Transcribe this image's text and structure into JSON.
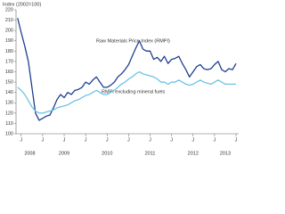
{
  "chart_data": {
    "type": "line",
    "y_axis_label": "Index (2002=100)",
    "annotations": [
      "Raw Materials Price Index (RMPI)",
      "RMPI excluding mineral fuels"
    ],
    "x": [
      2008.417,
      2008.5,
      2008.583,
      2008.667,
      2008.75,
      2008.833,
      2008.917,
      2009,
      2009.083,
      2009.167,
      2009.25,
      2009.333,
      2009.417,
      2009.5,
      2009.583,
      2009.667,
      2009.75,
      2009.833,
      2009.917,
      2010,
      2010.083,
      2010.167,
      2010.25,
      2010.333,
      2010.417,
      2010.5,
      2010.583,
      2010.667,
      2010.75,
      2010.833,
      2010.917,
      2011,
      2011.083,
      2011.167,
      2011.25,
      2011.333,
      2011.417,
      2011.5,
      2011.583,
      2011.667,
      2011.75,
      2011.833,
      2011.917,
      2012,
      2012.083,
      2012.167,
      2012.25,
      2012.333,
      2012.417,
      2012.5,
      2012.583,
      2012.667,
      2012.75,
      2012.833,
      2012.917,
      2013,
      2013.083,
      2013.167,
      2013.25,
      2013.333,
      2013.417,
      2013.5
    ],
    "series": [
      {
        "name": "Raw Materials Price Index (RMPI)",
        "color": "#1f3f8f",
        "values": [
          212,
          198,
          185,
          170,
          145,
          120,
          113,
          115,
          117,
          118,
          125,
          133,
          138,
          135,
          140,
          138,
          142,
          143,
          145,
          150,
          148,
          152,
          155,
          150,
          145,
          145,
          147,
          150,
          155,
          158,
          162,
          167,
          175,
          183,
          190,
          182,
          180,
          180,
          172,
          174,
          170,
          175,
          168,
          172,
          173,
          175,
          168,
          162,
          155,
          160,
          165,
          167,
          163,
          162,
          163,
          167,
          170,
          162,
          160,
          163,
          162,
          168
        ]
      },
      {
        "name": "RMPI excluding mineral fuels",
        "color": "#6ec3e6",
        "values": [
          145,
          142,
          138,
          132,
          126,
          122,
          120,
          120,
          121,
          122,
          123,
          125,
          126,
          127,
          128,
          130,
          132,
          133,
          135,
          137,
          138,
          140,
          142,
          140,
          138,
          138,
          140,
          142,
          145,
          148,
          150,
          153,
          155,
          158,
          160,
          158,
          157,
          156,
          155,
          153,
          150,
          150,
          148,
          150,
          150,
          152,
          150,
          148,
          147,
          148,
          150,
          152,
          150,
          149,
          148,
          150,
          152,
          150,
          148,
          148,
          148,
          148
        ]
      }
    ],
    "xlim": [
      2008.38,
      2013.52
    ],
    "xticks": [
      {
        "value": 2008.5,
        "label": "J"
      },
      {
        "value": 2009,
        "label": "J"
      },
      {
        "value": 2009.5,
        "label": "J"
      },
      {
        "value": 2010,
        "label": "J"
      },
      {
        "value": 2010.5,
        "label": "J"
      },
      {
        "value": 2011,
        "label": "J"
      },
      {
        "value": 2011.5,
        "label": "J"
      },
      {
        "value": 2012,
        "label": "J"
      },
      {
        "value": 2012.5,
        "label": "J"
      },
      {
        "value": 2013,
        "label": "J"
      },
      {
        "value": 2013.5,
        "label": "J"
      }
    ],
    "year_labels": [
      {
        "value": 2008.7,
        "label": "2008"
      },
      {
        "value": 2009.5,
        "label": "2009"
      },
      {
        "value": 2010.5,
        "label": "2010"
      },
      {
        "value": 2011.5,
        "label": "2011"
      },
      {
        "value": 2012.5,
        "label": "2012"
      },
      {
        "value": 2013.25,
        "label": "2013"
      }
    ],
    "ylim": [
      100,
      220
    ],
    "yticks": [
      100,
      110,
      120,
      130,
      140,
      150,
      160,
      170,
      180,
      190,
      200,
      210,
      220
    ],
    "grid": false
  }
}
